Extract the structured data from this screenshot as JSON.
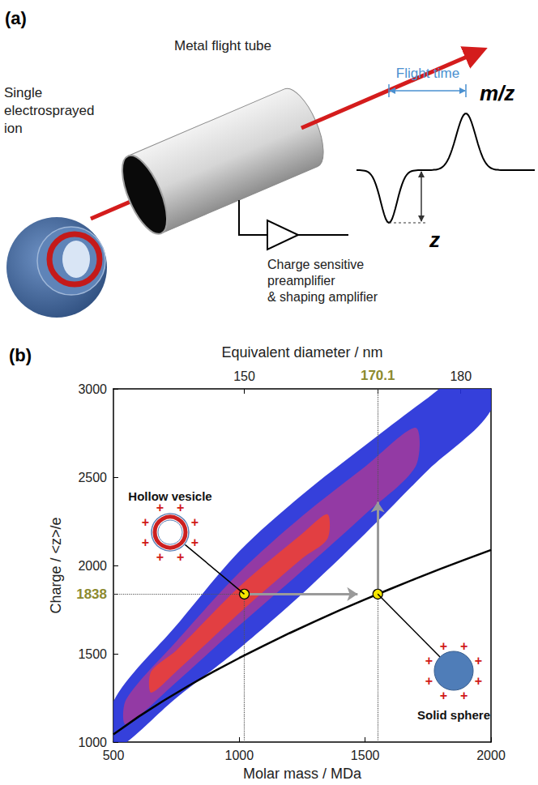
{
  "diagram": {
    "label": "(a)",
    "tube": "Metal flight tube",
    "ion": [
      "Single",
      "electrosprayed",
      "ion"
    ],
    "flight_time": "Flight time",
    "mz": "m/z",
    "z": "z",
    "amplifier": [
      "Charge sensitive",
      "preamplifier",
      "& shaping amplifier"
    ]
  },
  "chart_data": {
    "type": "density",
    "title": "(b)",
    "xlabel": "Molar mass / MDa",
    "ylabel": "Charge / <z>/e",
    "x2label": "Equivalent diameter / nm",
    "xlim": [
      500,
      2000
    ],
    "xticks": [
      500,
      1000,
      1500,
      2000
    ],
    "x2lim": [
      500,
      2000
    ],
    "x2ticks": [
      {
        "value": 1020,
        "label": "150"
      },
      {
        "value": 1550,
        "label": "170.1",
        "color": "#8c8a2e"
      },
      {
        "value": 1880,
        "label": "180"
      }
    ],
    "ylim": [
      1000,
      3000
    ],
    "yticks": [
      1000,
      1500,
      {
        "value": 1838,
        "label": "1838",
        "color": "#8c8a2e"
      },
      2000,
      2500,
      3000
    ],
    "grid": false,
    "series": [
      {
        "type": "band",
        "color": "#2430d8",
        "x": [
          500,
          750,
          1000,
          1250,
          1500,
          1750,
          2000
        ],
        "lower": [
          960,
          1250,
          1530,
          1840,
          2180,
          2540,
          2880
        ],
        "upper": [
          1230,
          1660,
          2080,
          2400,
          2680,
          2950,
          3200
        ]
      },
      {
        "type": "band",
        "color": "#9b3aa0",
        "x": [
          550,
          750,
          1000,
          1250,
          1500,
          1700
        ],
        "lower": [
          1100,
          1340,
          1660,
          1970,
          2290,
          2560
        ],
        "upper": [
          1240,
          1570,
          1960,
          2280,
          2560,
          2780
        ]
      },
      {
        "type": "band",
        "color": "#e8403a",
        "x": [
          650,
          750,
          1000,
          1250,
          1350
        ],
        "lower": [
          1280,
          1400,
          1730,
          2040,
          2150
        ],
        "upper": [
          1400,
          1520,
          1880,
          2180,
          2290
        ]
      },
      {
        "type": "line",
        "color": "#000000",
        "line_style": "solid",
        "x": [
          500,
          600,
          700,
          800,
          900,
          1000,
          1100,
          1200,
          1300,
          1400,
          1500,
          1600,
          1700,
          1800,
          1900,
          2000
        ],
        "values": [
          1044,
          1144,
          1235,
          1320,
          1401,
          1476,
          1548,
          1617,
          1683,
          1747,
          1808,
          1867,
          1925,
          1981,
          2035,
          2088
        ]
      },
      {
        "type": "scatter",
        "color": "#f5e600",
        "marker": "circle",
        "x": [
          1020,
          1550
        ],
        "values": [
          1838,
          1838
        ]
      }
    ],
    "guides": {
      "y": 1838,
      "x": [
        1020,
        1550
      ],
      "line_style": "dotted"
    },
    "arrows": {
      "color": "#9a9a9a",
      "items": [
        {
          "from": [
            1020,
            1838
          ],
          "to": [
            1470,
            1838
          ]
        },
        {
          "from": [
            1550,
            1838
          ],
          "to": [
            1550,
            2360
          ]
        }
      ]
    },
    "annotations": [
      {
        "text": "Hollow vesicle",
        "x": 1020,
        "y": 1838,
        "marker": "hollow"
      },
      {
        "text": "Solid sphere",
        "x": 1550,
        "y": 1838,
        "marker": "solid"
      }
    ],
    "charge_mark": "+"
  }
}
